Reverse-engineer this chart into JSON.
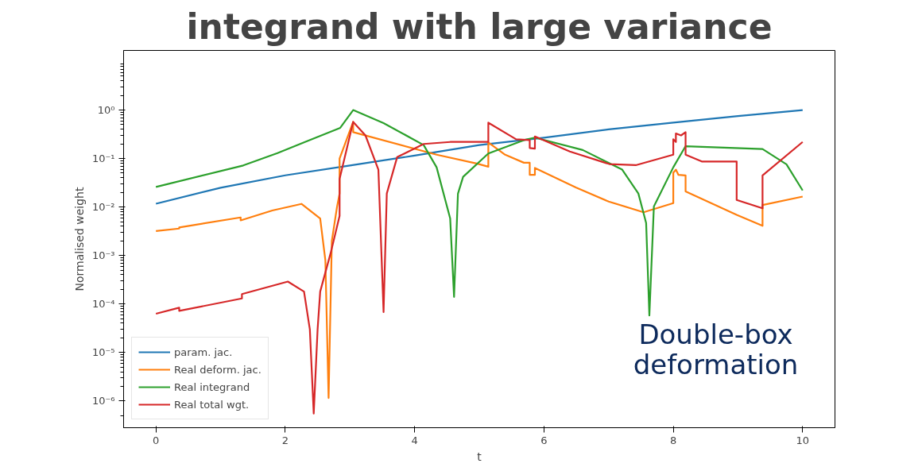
{
  "chart_data": {
    "type": "line",
    "title": "integrand with large variance",
    "xlabel": "t",
    "ylabel": "Normalised weight",
    "annotations": [
      "Double-box\ndeformation"
    ],
    "log": "y",
    "grid": false,
    "legend": "bottom left",
    "marker": "none",
    "line_style": "solid",
    "xlim": [
      -0.5,
      10.5
    ],
    "xticks": [
      0,
      2,
      4,
      6,
      8,
      10
    ],
    "ylim": [
      2.8e-07,
      17
    ],
    "yticks": [
      {
        "value": 1e-06,
        "label": "10⁻⁶"
      },
      {
        "value": 1e-05,
        "label": "10⁻⁵"
      },
      {
        "value": 0.0001,
        "label": "10⁻⁴"
      },
      {
        "value": 0.001,
        "label": "10⁻³"
      },
      {
        "value": 0.01,
        "label": "10⁻²"
      },
      {
        "value": 0.1,
        "label": "10⁻¹"
      },
      {
        "value": 1,
        "label": "10⁰"
      }
    ],
    "series": [
      {
        "name": "param. jac.",
        "color": "#1f77b4",
        "x": [
          0,
          1,
          2,
          3,
          4,
          5,
          6,
          7,
          8,
          9,
          10
        ],
        "values": [
          0.0117,
          0.025,
          0.045,
          0.072,
          0.115,
          0.19,
          0.27,
          0.4,
          0.55,
          0.75,
          1.0
        ]
      },
      {
        "name": "Real deform. jac.",
        "color": "#ff7f0e",
        "x": [
          0,
          0.36,
          0.36,
          1.31,
          1.31,
          1.8,
          2.25,
          2.54,
          2.62,
          2.67,
          2.72,
          2.8,
          2.84,
          2.84,
          3.05,
          3.05,
          4.34,
          4.96,
          5.14,
          5.14,
          5.4,
          5.69,
          5.78,
          5.78,
          5.86,
          5.86,
          6.5,
          7.0,
          7.54,
          8.0,
          8.0,
          8.04,
          8.08,
          8.19,
          8.19,
          8.98,
          9.38,
          9.38,
          10
        ],
        "values": [
          0.0032,
          0.0036,
          0.0038,
          0.0061,
          0.0053,
          0.0085,
          0.0116,
          0.0058,
          0.0008,
          1.15e-06,
          0.002,
          0.01,
          0.019,
          0.1,
          0.57,
          0.35,
          0.12,
          0.079,
          0.068,
          0.215,
          0.12,
          0.082,
          0.082,
          0.046,
          0.046,
          0.064,
          0.025,
          0.013,
          0.0078,
          0.012,
          0.051,
          0.059,
          0.046,
          0.045,
          0.021,
          0.0069,
          0.0041,
          0.011,
          0.0164
        ]
      },
      {
        "name": "Real integrand",
        "color": "#2ca02c",
        "x": [
          0,
          1.35,
          1.88,
          2.29,
          2.85,
          3.05,
          3.52,
          4.14,
          4.34,
          4.55,
          4.61,
          4.67,
          4.75,
          5.14,
          5.69,
          5.86,
          6.6,
          7.21,
          7.46,
          7.58,
          7.63,
          7.7,
          8.0,
          8.19,
          9.38,
          9.75,
          10
        ],
        "values": [
          0.026,
          0.072,
          0.13,
          0.215,
          0.43,
          1.0,
          0.54,
          0.19,
          0.066,
          0.0058,
          0.00014,
          0.0188,
          0.042,
          0.127,
          0.24,
          0.27,
          0.15,
          0.059,
          0.019,
          0.0047,
          5.8e-05,
          0.0103,
          0.066,
          0.18,
          0.157,
          0.076,
          0.022
        ]
      },
      {
        "name": "Real total wgt.",
        "color": "#d62728",
        "x": [
          0,
          0.36,
          0.36,
          1.33,
          1.33,
          2.04,
          2.29,
          2.38,
          2.44,
          2.5,
          2.54,
          2.7,
          2.84,
          2.84,
          3.05,
          3.24,
          3.44,
          3.52,
          3.57,
          3.73,
          4.14,
          4.55,
          5.14,
          5.14,
          5.57,
          5.78,
          5.78,
          5.86,
          5.86,
          6.4,
          7.01,
          7.42,
          8.0,
          8.0,
          8.04,
          8.04,
          8.12,
          8.19,
          8.19,
          8.44,
          8.98,
          8.98,
          9.38,
          9.38,
          10
        ],
        "values": [
          6.3e-05,
          8.4e-05,
          7.2e-05,
          0.00013,
          0.00016,
          0.00029,
          0.00018,
          3e-05,
          5.5e-07,
          3e-05,
          0.00018,
          0.0011,
          0.0066,
          0.038,
          0.57,
          0.3,
          0.059,
          6.8e-05,
          0.019,
          0.107,
          0.2,
          0.22,
          0.22,
          0.55,
          0.25,
          0.24,
          0.165,
          0.16,
          0.285,
          0.14,
          0.077,
          0.073,
          0.12,
          0.25,
          0.22,
          0.33,
          0.3,
          0.35,
          0.12,
          0.087,
          0.087,
          0.014,
          0.0094,
          0.045,
          0.22
        ]
      }
    ]
  }
}
